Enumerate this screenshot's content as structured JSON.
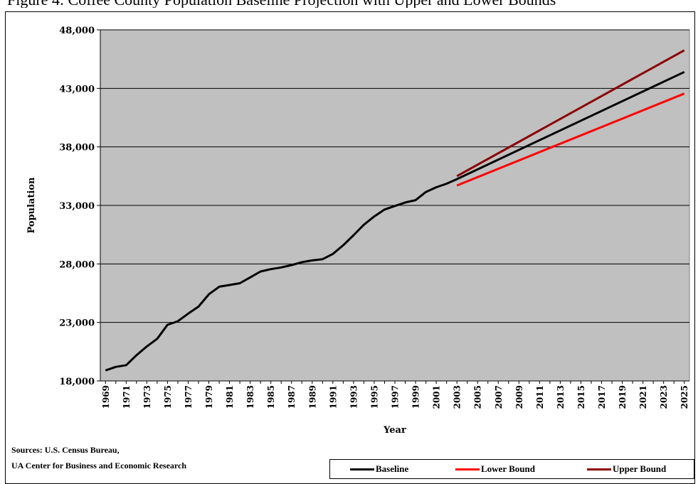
{
  "caption": "Figure 4: Coffee County Population Baseline Projection with Upper and Lower Bounds",
  "chart_data": {
    "type": "line",
    "xlabel": "Year",
    "ylabel": "Population",
    "ylim": [
      18000,
      48000
    ],
    "yticks": [
      "18,000",
      "23,000",
      "28,000",
      "33,000",
      "38,000",
      "43,000",
      "48,000"
    ],
    "xticks": [
      "1969",
      "1971",
      "1973",
      "1975",
      "1977",
      "1979",
      "1981",
      "1983",
      "1985",
      "1987",
      "1989",
      "1991",
      "1993",
      "1995",
      "1997",
      "1999",
      "2001",
      "2003",
      "2005",
      "2007",
      "2009",
      "2011",
      "2013",
      "2015",
      "2017",
      "2019",
      "2021",
      "2023",
      "2025"
    ],
    "grid": "horizontal",
    "legend_position": "bottom-right",
    "series": [
      {
        "name": "Baseline",
        "color": "#000000",
        "x": [
          1969,
          1970,
          1971,
          1972,
          1973,
          1974,
          1975,
          1976,
          1977,
          1978,
          1979,
          1980,
          1981,
          1982,
          1983,
          1984,
          1985,
          1986,
          1987,
          1988,
          1989,
          1990,
          1991,
          1992,
          1993,
          1994,
          1995,
          1996,
          1997,
          1998,
          1999,
          2000,
          2001,
          2002,
          2003,
          2025
        ],
        "values": [
          18900,
          19200,
          19350,
          20200,
          20950,
          21600,
          22800,
          23100,
          23750,
          24350,
          25400,
          26050,
          26200,
          26350,
          26850,
          27350,
          27550,
          27700,
          27900,
          28150,
          28300,
          28400,
          28850,
          29600,
          30450,
          31350,
          32050,
          32650,
          32950,
          33250,
          33450,
          34150,
          34550,
          34850,
          35250,
          44400
        ]
      },
      {
        "name": "Lower Bound",
        "color": "#ff0000",
        "x": [
          2003,
          2025
        ],
        "values": [
          34700,
          42550
        ]
      },
      {
        "name": "Upper Bound",
        "color": "#8b0000",
        "x": [
          2003,
          2025
        ],
        "values": [
          35500,
          46250
        ]
      }
    ]
  },
  "sources": {
    "line1": "Sources: U.S. Census Bureau,",
    "line2": "UA Center for Business and Economic Research"
  }
}
